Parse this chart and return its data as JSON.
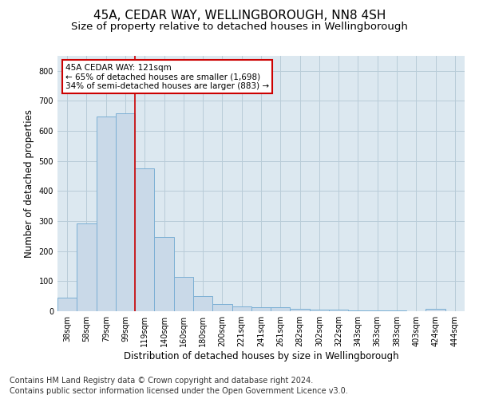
{
  "title": "45A, CEDAR WAY, WELLINGBOROUGH, NN8 4SH",
  "subtitle": "Size of property relative to detached houses in Wellingborough",
  "xlabel": "Distribution of detached houses by size in Wellingborough",
  "ylabel": "Number of detached properties",
  "categories": [
    "38sqm",
    "58sqm",
    "79sqm",
    "99sqm",
    "119sqm",
    "140sqm",
    "160sqm",
    "180sqm",
    "200sqm",
    "221sqm",
    "241sqm",
    "261sqm",
    "282sqm",
    "302sqm",
    "322sqm",
    "343sqm",
    "363sqm",
    "383sqm",
    "403sqm",
    "424sqm",
    "444sqm"
  ],
  "values": [
    46,
    292,
    648,
    660,
    475,
    247,
    114,
    51,
    25,
    15,
    13,
    13,
    7,
    5,
    5,
    3,
    3,
    3,
    1,
    7,
    1
  ],
  "bar_color": "#c9d9e8",
  "bar_edge_color": "#7bafd4",
  "vline_x": 3.5,
  "vline_color": "#cc0000",
  "annotation_text": "45A CEDAR WAY: 121sqm\n← 65% of detached houses are smaller (1,698)\n34% of semi-detached houses are larger (883) →",
  "annotation_box_color": "#ffffff",
  "annotation_box_edge_color": "#cc0000",
  "ylim": [
    0,
    850
  ],
  "yticks": [
    0,
    100,
    200,
    300,
    400,
    500,
    600,
    700,
    800
  ],
  "footer1": "Contains HM Land Registry data © Crown copyright and database right 2024.",
  "footer2": "Contains public sector information licensed under the Open Government Licence v3.0.",
  "background_color": "#ffffff",
  "plot_bg_color": "#dce8f0",
  "grid_color": "#b8ccd8",
  "title_fontsize": 11,
  "subtitle_fontsize": 9.5,
  "axis_label_fontsize": 8.5,
  "tick_fontsize": 7,
  "annotation_fontsize": 7.5,
  "footer_fontsize": 7
}
